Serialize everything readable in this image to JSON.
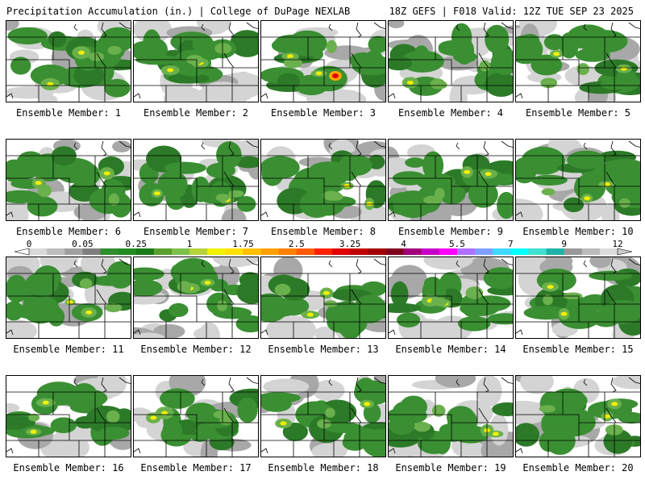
{
  "header": {
    "left": "Precipitation Accumulation (in.) | College of DuPage NEXLAB",
    "right": "18Z GEFS | F018 Valid: 12Z TUE SEP 23 2025"
  },
  "member_label_prefix": "Ensemble Member: ",
  "members": [
    {
      "id": 1,
      "label": "Ensemble Member: 1"
    },
    {
      "id": 2,
      "label": "Ensemble Member: 2"
    },
    {
      "id": 3,
      "label": "Ensemble Member: 3"
    },
    {
      "id": 4,
      "label": "Ensemble Member: 4"
    },
    {
      "id": 5,
      "label": "Ensemble Member: 5"
    },
    {
      "id": 6,
      "label": "Ensemble Member: 6"
    },
    {
      "id": 7,
      "label": "Ensemble Member: 7"
    },
    {
      "id": 8,
      "label": "Ensemble Member: 8"
    },
    {
      "id": 9,
      "label": "Ensemble Member: 9"
    },
    {
      "id": 10,
      "label": "Ensemble Member: 10"
    },
    {
      "id": 11,
      "label": "Ensemble Member: 11"
    },
    {
      "id": 12,
      "label": "Ensemble Member: 12"
    },
    {
      "id": 13,
      "label": "Ensemble Member: 13"
    },
    {
      "id": 14,
      "label": "Ensemble Member: 14"
    },
    {
      "id": 15,
      "label": "Ensemble Member: 15"
    },
    {
      "id": 16,
      "label": "Ensemble Member: 16"
    },
    {
      "id": 17,
      "label": "Ensemble Member: 17"
    },
    {
      "id": 18,
      "label": "Ensemble Member: 18"
    },
    {
      "id": 19,
      "label": "Ensemble Member: 19"
    },
    {
      "id": 20,
      "label": "Ensemble Member: 20"
    }
  ],
  "colorbar": {
    "tick_labels": [
      "0",
      "0.05",
      "0.25",
      "1",
      "1.75",
      "2.5",
      "3.25",
      "4",
      "5.5",
      "7",
      "9",
      "12"
    ],
    "colors": [
      "#d9d9d9",
      "#bdbdbd",
      "#a0a0a0",
      "#7f7f7f",
      "#2f8f2f",
      "#228b22",
      "#1a7a1a",
      "#5aa02c",
      "#7ec04a",
      "#b8d23c",
      "#f2f200",
      "#ffe000",
      "#ffc000",
      "#ffa000",
      "#ff7f00",
      "#ff5a00",
      "#ff2000",
      "#e00000",
      "#c00000",
      "#a00000",
      "#800020",
      "#a0007a",
      "#c800c8",
      "#ff00ff",
      "#b070ff",
      "#7fa0ff",
      "#40d8ff",
      "#00ffff",
      "#40e0d0",
      "#20b2aa",
      "#999999",
      "#bbbbbb",
      "#dddddd"
    ]
  },
  "palette": {
    "light_gray": "#d4d4d4",
    "gray": "#a8a8a8",
    "dark_gray": "#8a8a8a",
    "green": "#3a8f32",
    "dark_green": "#2c7a28",
    "light_green": "#6ab04c",
    "yellow": "#f0f000",
    "orange": "#ffa500",
    "red": "#e00000"
  }
}
